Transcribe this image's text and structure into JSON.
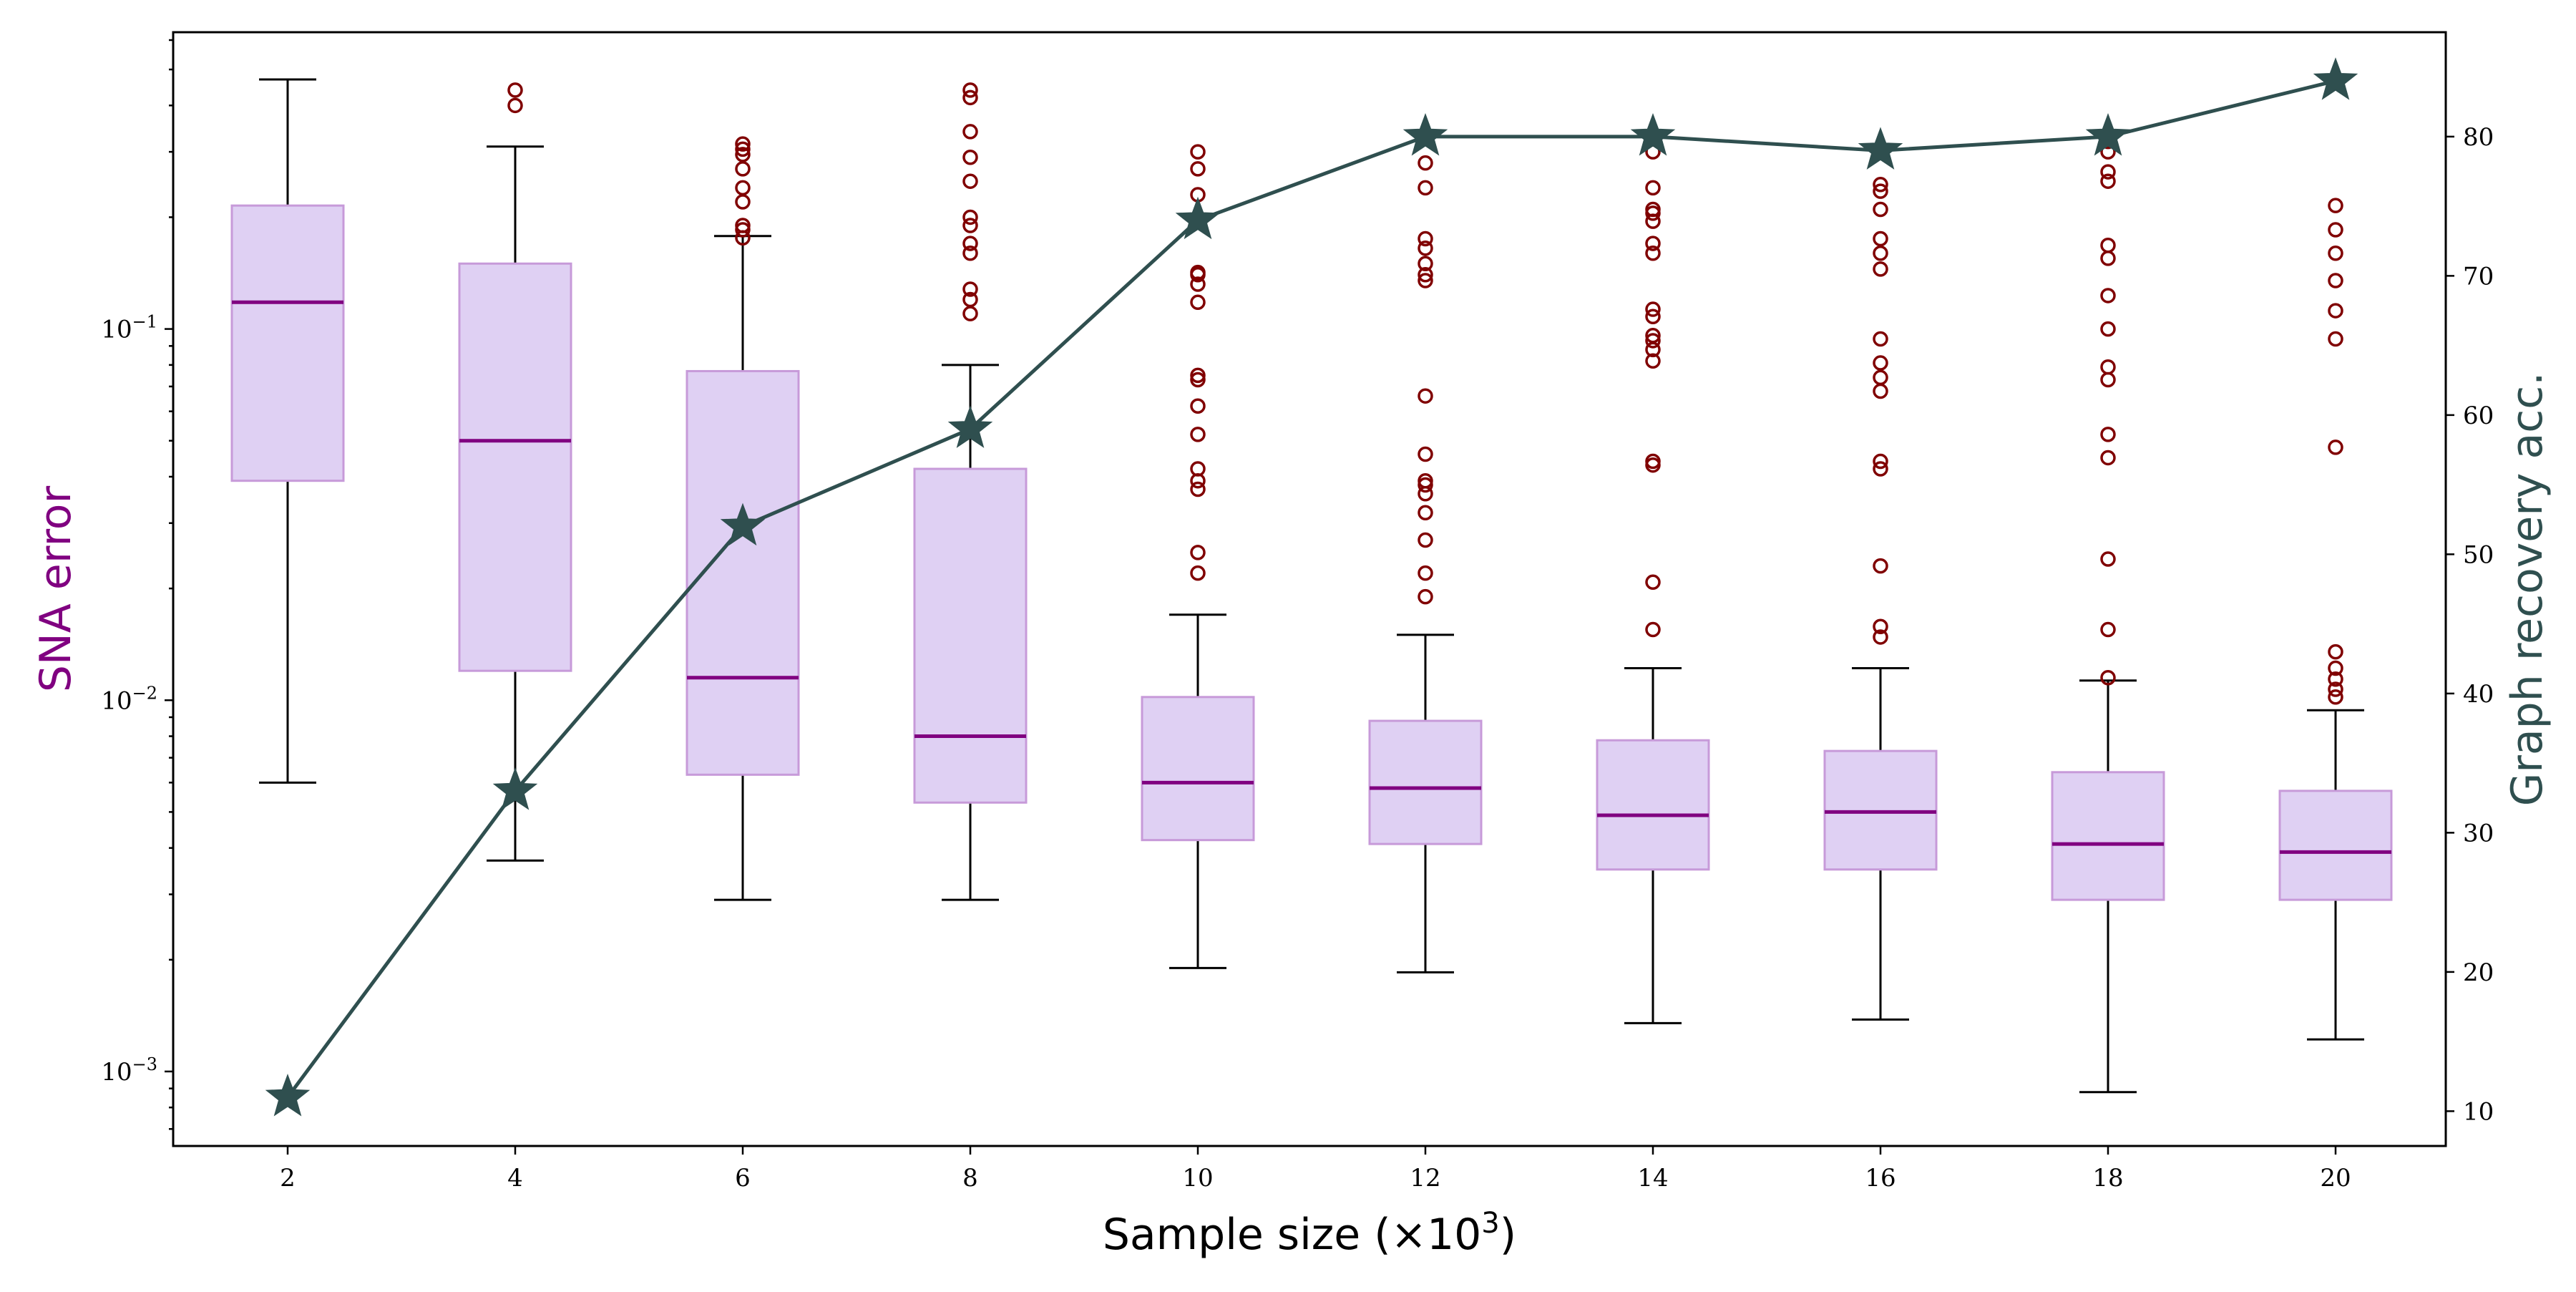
{
  "colors": {
    "box_fill": "#dfd0f3",
    "box_edge": "#c79ad9",
    "median": "#800080",
    "whisker": "#000000",
    "flier": "#800000",
    "line": "#2f4f4f",
    "left_label": "#800080",
    "right_label": "#2f4f4f"
  },
  "chart_data": {
    "type": "box+line",
    "categories": [
      "2",
      "4",
      "6",
      "8",
      "10",
      "12",
      "14",
      "16",
      "18",
      "20"
    ],
    "xlabel": "Sample size (×10³)",
    "xlabel_parts": {
      "main": "Sample size (×10",
      "sup": "3",
      "close": ")"
    },
    "left_axis": {
      "label": "SNA error",
      "scale": "log",
      "ylim": [
        0.00063,
        0.63
      ],
      "ticks": [
        {
          "value": 0.001,
          "base": "10",
          "exp": "−3"
        },
        {
          "value": 0.01,
          "base": "10",
          "exp": "−2"
        },
        {
          "value": 0.1,
          "base": "10",
          "exp": "−1"
        }
      ]
    },
    "right_axis": {
      "label": "Graph recovery acc.",
      "scale": "linear",
      "ylim": [
        7.5,
        87.5
      ],
      "ticks": [
        "10",
        "20",
        "30",
        "40",
        "50",
        "60",
        "70",
        "80"
      ]
    },
    "boxes": [
      {
        "category": "2",
        "whislo": 0.006,
        "q1": 0.039,
        "med": 0.118,
        "q3": 0.215,
        "whishi": 0.47,
        "fliers": []
      },
      {
        "category": "4",
        "whislo": 0.0037,
        "q1": 0.012,
        "med": 0.05,
        "q3": 0.15,
        "whishi": 0.31,
        "fliers": [
          0.4,
          0.44
        ]
      },
      {
        "category": "6",
        "whislo": 0.0029,
        "q1": 0.0063,
        "med": 0.0115,
        "q3": 0.077,
        "whishi": 0.178,
        "fliers": [
          0.176,
          0.185,
          0.19,
          0.22,
          0.24,
          0.27,
          0.295,
          0.305,
          0.315
        ]
      },
      {
        "category": "8",
        "whislo": 0.0029,
        "q1": 0.0053,
        "med": 0.008,
        "q3": 0.042,
        "whishi": 0.08,
        "fliers": [
          0.11,
          0.12,
          0.128,
          0.16,
          0.17,
          0.19,
          0.2,
          0.25,
          0.29,
          0.34,
          0.42,
          0.44
        ]
      },
      {
        "category": "10",
        "whislo": 0.0019,
        "q1": 0.0042,
        "med": 0.006,
        "q3": 0.0102,
        "whishi": 0.017,
        "fliers": [
          0.022,
          0.025,
          0.037,
          0.039,
          0.042,
          0.052,
          0.062,
          0.073,
          0.075,
          0.118,
          0.132,
          0.14,
          0.142,
          0.2,
          0.23,
          0.27,
          0.3
        ]
      },
      {
        "category": "12",
        "whislo": 0.00185,
        "q1": 0.0041,
        "med": 0.0058,
        "q3": 0.0088,
        "whishi": 0.015,
        "fliers": [
          0.019,
          0.022,
          0.027,
          0.032,
          0.036,
          0.038,
          0.039,
          0.046,
          0.066,
          0.135,
          0.14,
          0.15,
          0.165,
          0.175,
          0.24,
          0.28
        ]
      },
      {
        "category": "14",
        "whislo": 0.00135,
        "q1": 0.0035,
        "med": 0.0049,
        "q3": 0.0078,
        "whishi": 0.0122,
        "fliers": [
          0.0155,
          0.0208,
          0.043,
          0.044,
          0.082,
          0.088,
          0.093,
          0.096,
          0.108,
          0.113,
          0.16,
          0.17,
          0.195,
          0.205,
          0.21,
          0.24,
          0.3
        ]
      },
      {
        "category": "16",
        "whislo": 0.00138,
        "q1": 0.0035,
        "med": 0.005,
        "q3": 0.0073,
        "whishi": 0.0122,
        "fliers": [
          0.0148,
          0.0158,
          0.023,
          0.042,
          0.044,
          0.068,
          0.074,
          0.081,
          0.094,
          0.145,
          0.16,
          0.175,
          0.21,
          0.235,
          0.245
        ]
      },
      {
        "category": "18",
        "whislo": 0.00088,
        "q1": 0.0029,
        "med": 0.0041,
        "q3": 0.0064,
        "whishi": 0.0113,
        "fliers": [
          0.0115,
          0.0155,
          0.024,
          0.045,
          0.052,
          0.073,
          0.079,
          0.1,
          0.123,
          0.155,
          0.168,
          0.25,
          0.265,
          0.3,
          0.32
        ]
      },
      {
        "category": "20",
        "whislo": 0.00122,
        "q1": 0.0029,
        "med": 0.0039,
        "q3": 0.0057,
        "whishi": 0.0094,
        "fliers": [
          0.0102,
          0.0107,
          0.0114,
          0.0122,
          0.0135,
          0.048,
          0.094,
          0.112,
          0.135,
          0.16,
          0.185,
          0.215
        ]
      }
    ],
    "line_series": {
      "name": "Graph recovery acc.",
      "marker": "star",
      "values": [
        11,
        33,
        52,
        59,
        74,
        80,
        80,
        79,
        80,
        84
      ]
    }
  }
}
